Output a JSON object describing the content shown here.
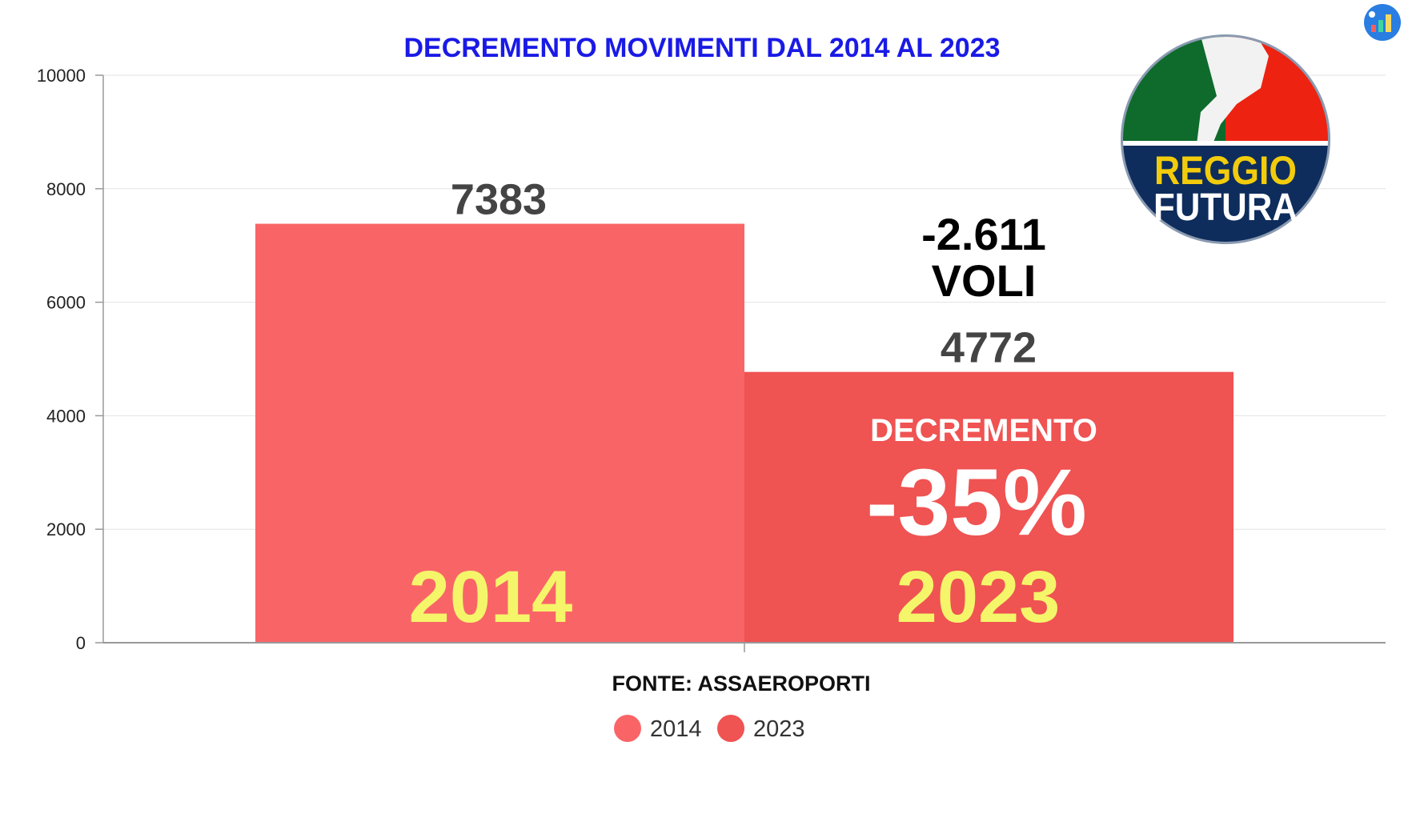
{
  "chart_data": {
    "type": "bar",
    "title": "DECREMENTO MOVIMENTI DAL 2014 AL 2023",
    "categories": [
      "2014",
      "2023"
    ],
    "values": [
      7383,
      4772
    ],
    "data_labels": [
      "7383",
      "4772"
    ],
    "ylim": [
      0,
      10000
    ],
    "yticks": [
      0,
      2000,
      4000,
      6000,
      8000,
      10000
    ],
    "grid": true,
    "legend": {
      "placement": "bottom",
      "entries": [
        "2014",
        "2023"
      ]
    },
    "colors": [
      "#f96567",
      "#ef5352"
    ],
    "annotations": {
      "difference": "-2.611",
      "difference_unit": "VOLI",
      "decrease_label": "DECREMENTO",
      "decrease_percent": "-35%",
      "bar_year_labels": [
        "2014",
        "2023"
      ]
    },
    "source": "FONTE: ASSAEROPORTI"
  },
  "logo": {
    "text_top": "REGGIO",
    "text_bottom": "FUTURA"
  },
  "colors": {
    "title": "#1a1ae6",
    "year_label": "#f5f56a",
    "data_label": "#444444"
  }
}
